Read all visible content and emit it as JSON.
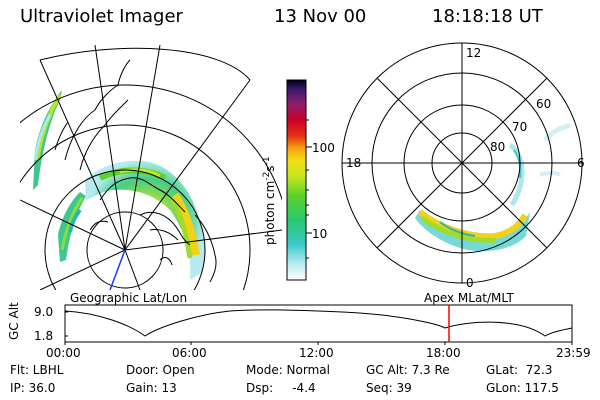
{
  "header": {
    "instrument": "Ultraviolet Imager",
    "date": "13 Nov 00",
    "time": "18:18:18 UT"
  },
  "colorbar": {
    "unit_label": "photon cm",
    "unit_sup1": "-2",
    "unit_s": "s",
    "unit_sup2": "-1",
    "tick_100": "100",
    "tick_10": "10"
  },
  "polar_plot": {
    "label_12": "12",
    "label_18": "18",
    "label_6": "6",
    "label_0": "0",
    "label_60": "60",
    "label_70": "70",
    "label_80": "80"
  },
  "map_labels": {
    "left": "Geographic Lat/Lon",
    "right": "Apex MLat/MLT"
  },
  "timeline": {
    "ylabel": "GC Alt",
    "y_top": "9.0",
    "y_bottom": "1.8",
    "ticks": [
      "00:00",
      "06:00",
      "12:00",
      "18:00",
      "23:59"
    ]
  },
  "info": {
    "flt": "Flt: LBHL",
    "ip": "IP: 36.0",
    "door": "Door: Open",
    "gain": "Gain: 13",
    "mode": "Mode: Normal",
    "dsp": "Dsp:     -4.4",
    "gcalt": "GC Alt: 7.3 Re",
    "seq": "Seq: 39",
    "glat": "GLat:  72.3",
    "glon": "GLon: 117.5"
  },
  "colors": {
    "current_time_marker": "#ff0000"
  }
}
